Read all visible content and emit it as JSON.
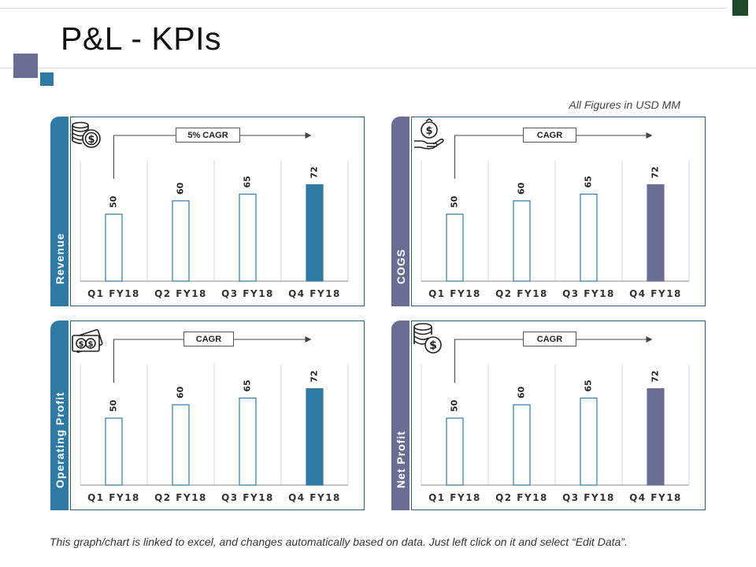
{
  "page": {
    "title": "P&L - KPIs",
    "units_note": "All Figures in USD MM",
    "footer_note": "This graph/chart is linked to excel, and changes automatically based on data. Just left click on it and select “Edit Data”."
  },
  "colors": {
    "blue": "#2e7aa3",
    "purple": "#6b6e93",
    "bar_outline": "#2e7aa3"
  },
  "panels": [
    {
      "key": "revenue",
      "label": "Revenue",
      "cagr": "5% CAGR",
      "color": "#2e7aa3",
      "icon": "coins-dollar-icon"
    },
    {
      "key": "cogs",
      "label": "COGS",
      "cagr": "CAGR",
      "color": "#6b6e93",
      "icon": "hand-money-bag-icon"
    },
    {
      "key": "operating_profit",
      "label": "Operating Profit",
      "cagr": "CAGR",
      "color": "#2e7aa3",
      "icon": "cash-bills-icon"
    },
    {
      "key": "net_profit",
      "label": "Net Profit",
      "cagr": "CAGR",
      "color": "#6b6e93",
      "icon": "coin-stack-dollar-icon"
    }
  ],
  "chart_data": [
    {
      "type": "bar",
      "title": "Revenue",
      "categories": [
        "Q1 FY18",
        "Q2 FY18",
        "Q3 FY18",
        "Q4 FY18"
      ],
      "values": [
        50,
        60,
        65,
        72
      ],
      "ylim": [
        0,
        90
      ],
      "annotation": "5% CAGR",
      "highlight": "Q4 FY18"
    },
    {
      "type": "bar",
      "title": "COGS",
      "categories": [
        "Q1 FY18",
        "Q2 FY18",
        "Q3 FY18",
        "Q4 FY18"
      ],
      "values": [
        50,
        60,
        65,
        72
      ],
      "ylim": [
        0,
        90
      ],
      "annotation": "CAGR",
      "highlight": "Q4 FY18"
    },
    {
      "type": "bar",
      "title": "Operating Profit",
      "categories": [
        "Q1 FY18",
        "Q2 FY18",
        "Q3 FY18",
        "Q4 FY18"
      ],
      "values": [
        50,
        60,
        65,
        72
      ],
      "ylim": [
        0,
        90
      ],
      "annotation": "CAGR",
      "highlight": "Q4 FY18"
    },
    {
      "type": "bar",
      "title": "Net Profit",
      "categories": [
        "Q1 FY18",
        "Q2 FY18",
        "Q3 FY18",
        "Q4 FY18"
      ],
      "values": [
        50,
        60,
        65,
        72
      ],
      "ylim": [
        0,
        90
      ],
      "annotation": "CAGR",
      "highlight": "Q4 FY18"
    }
  ]
}
